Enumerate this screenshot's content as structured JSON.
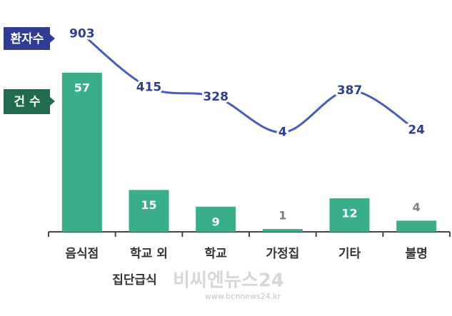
{
  "chart_data": {
    "type": "combo",
    "categories": [
      "음식점",
      "학교 외 집단급식",
      "학교",
      "가정집",
      "기타",
      "불명"
    ],
    "series": [
      {
        "name": "환자수",
        "type": "line",
        "color": "#4b5cb8",
        "values": [
          903,
          415,
          328,
          4,
          387,
          24
        ]
      },
      {
        "name": "건 수",
        "type": "bar",
        "color": "#3aae8a",
        "values": [
          57,
          15,
          9,
          1,
          12,
          4
        ]
      }
    ],
    "watermark": {
      "text": "비씨엔뉴스24",
      "url": "www.bcnnews24.kr"
    }
  }
}
